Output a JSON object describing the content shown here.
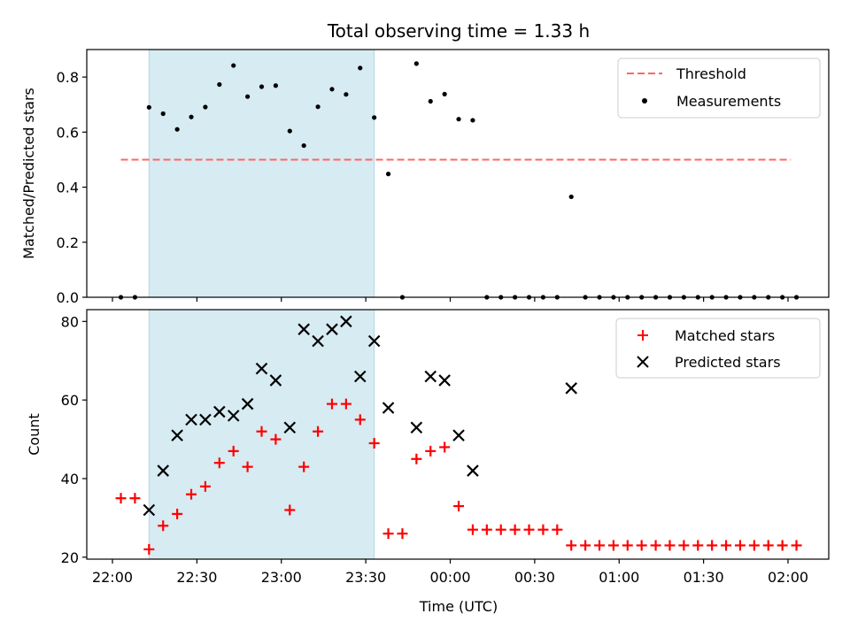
{
  "chart_data": [
    {
      "type": "scatter",
      "title": "Total observing time = 1.33 h",
      "xlabel": "",
      "ylabel": "Matched/Predicted stars",
      "xlim": [
        "21:55",
        "02:05"
      ],
      "ylim": [
        0,
        0.9
      ],
      "yticks": [
        "0.0",
        "0.2",
        "0.4",
        "0.6",
        "0.8"
      ],
      "legend_position": "top-right",
      "shaded_region": {
        "start": "22:13",
        "end": "23:33",
        "color": "#add8e6"
      },
      "threshold": {
        "name": "Threshold",
        "value": 0.5,
        "x_start": "22:03",
        "x_end": "02:01",
        "color": "#ff6666"
      },
      "series": [
        {
          "name": "Measurements",
          "color": "#000000",
          "x": [
            "22:03",
            "22:08",
            "22:13",
            "22:18",
            "22:23",
            "22:28",
            "22:33",
            "22:38",
            "22:43",
            "22:48",
            "22:53",
            "22:58",
            "23:03",
            "23:08",
            "23:13",
            "23:18",
            "23:23",
            "23:28",
            "23:33",
            "23:38",
            "23:43",
            "23:48",
            "23:53",
            "23:58",
            "00:03",
            "00:08",
            "00:13",
            "00:18",
            "00:23",
            "00:28",
            "00:33",
            "00:38",
            "00:43",
            "00:48",
            "00:53",
            "00:58",
            "01:03",
            "01:08",
            "01:13",
            "01:18",
            "01:23",
            "01:28",
            "01:33",
            "01:38",
            "01:43",
            "01:48",
            "01:53",
            "01:58",
            "02:03"
          ],
          "values": [
            0,
            0,
            0.69,
            0.667,
            0.61,
            0.655,
            0.691,
            0.773,
            0.842,
            0.729,
            0.765,
            0.769,
            0.604,
            0.551,
            0.692,
            0.756,
            0.737,
            0.833,
            0.653,
            0.448,
            0,
            0.849,
            0.712,
            0.738,
            0.647,
            0.643,
            0,
            0,
            0,
            0,
            0,
            0,
            0.365,
            0,
            0,
            0,
            0,
            0,
            0,
            0,
            0,
            0,
            0,
            0,
            0,
            0,
            0,
            0,
            0
          ]
        }
      ]
    },
    {
      "type": "scatter",
      "title": "",
      "xlabel": "Time (UTC)",
      "ylabel": "Count",
      "xlim": [
        "21:55",
        "02:05"
      ],
      "ylim": [
        19.5,
        83
      ],
      "yticks": [
        "20",
        "40",
        "60",
        "80"
      ],
      "xticks": [
        "22:00",
        "22:30",
        "23:00",
        "23:30",
        "00:00",
        "00:30",
        "01:00",
        "01:30",
        "02:00"
      ],
      "legend_position": "top-right",
      "shaded_region": {
        "start": "22:13",
        "end": "23:33",
        "color": "#add8e6"
      },
      "series": [
        {
          "name": "Matched stars",
          "color": "#ff0000",
          "marker": "+",
          "x": [
            "22:03",
            "22:08",
            "22:13",
            "22:18",
            "22:23",
            "22:28",
            "22:33",
            "22:38",
            "22:43",
            "22:48",
            "22:53",
            "22:58",
            "23:03",
            "23:08",
            "23:13",
            "23:18",
            "23:23",
            "23:28",
            "23:33",
            "23:38",
            "23:43",
            "23:48",
            "23:53",
            "23:58",
            "00:03",
            "00:08",
            "00:13",
            "00:18",
            "00:23",
            "00:28",
            "00:33",
            "00:38",
            "00:43",
            "00:48",
            "00:53",
            "00:58",
            "01:03",
            "01:08",
            "01:13",
            "01:18",
            "01:23",
            "01:28",
            "01:33",
            "01:38",
            "01:43",
            "01:48",
            "01:53",
            "01:58",
            "02:03"
          ],
          "values": [
            35,
            35,
            22,
            28,
            31,
            36,
            38,
            44,
            47,
            43,
            52,
            50,
            32,
            43,
            52,
            59,
            59,
            55,
            49,
            26,
            26,
            45,
            47,
            48,
            33,
            27,
            27,
            27,
            27,
            27,
            27,
            27,
            23,
            23,
            23,
            23,
            23,
            23,
            23,
            23,
            23,
            23,
            23,
            23,
            23,
            23,
            23,
            23,
            23
          ]
        },
        {
          "name": "Predicted stars",
          "color": "#000000",
          "marker": "x",
          "x": [
            "22:13",
            "22:18",
            "22:23",
            "22:28",
            "22:33",
            "22:38",
            "22:43",
            "22:48",
            "22:53",
            "22:58",
            "23:03",
            "23:08",
            "23:13",
            "23:18",
            "23:23",
            "23:28",
            "23:33",
            "23:38",
            "23:48",
            "23:53",
            "23:58",
            "00:03",
            "00:08",
            "00:43"
          ],
          "values": [
            32,
            42,
            51,
            55,
            55,
            57,
            56,
            59,
            68,
            65,
            53,
            78,
            75,
            78,
            80,
            66,
            75,
            58,
            53,
            66,
            65,
            51,
            42,
            63
          ]
        }
      ]
    }
  ]
}
